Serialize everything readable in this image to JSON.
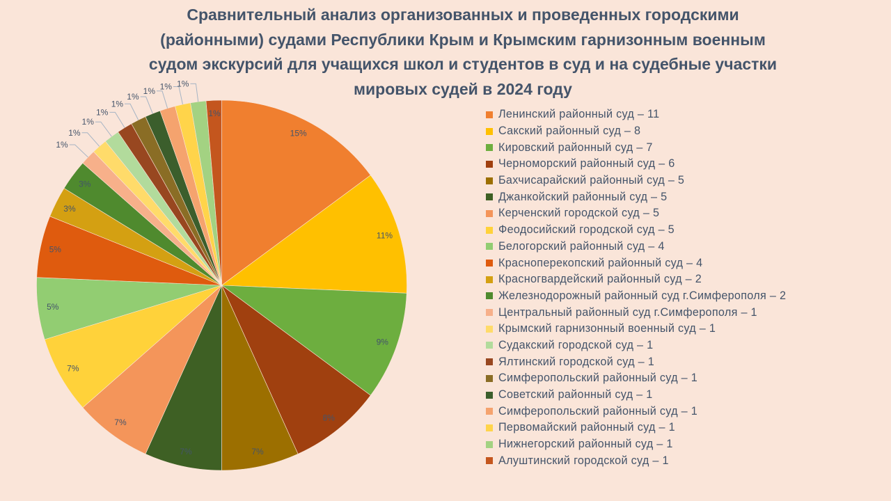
{
  "chart_data": {
    "type": "pie",
    "title": "Сравнительный анализ организованных и проведенных городскими (районными) судами Республики Крым и Крымским гарнизонным военным судом экскурсий для учащихся школ и студентов в суд и на судебные участки мировых судей в 2024 году",
    "title_lines": [
      "Сравнительный анализ организованных и проведенных городскими",
      "(районными) судами Республики Крым и Крымским гарнизонным военным",
      "судом экскурсий для учащихся школ и студентов в суд и на судебные участки",
      "мировых судей в 2024 году"
    ],
    "legend_position": "right",
    "slices": [
      {
        "label": "Ленинский районный суд – 11",
        "value": 11,
        "percent_label": "15%",
        "color": "#F07F2F"
      },
      {
        "label": "Сакский районный суд – 8",
        "value": 8,
        "percent_label": "11%",
        "color": "#FFC000"
      },
      {
        "label": "Кировский районный суд – 7",
        "value": 7,
        "percent_label": "9%",
        "color": "#6DAE3F"
      },
      {
        "label": "Черноморский районный суд – 6",
        "value": 6,
        "percent_label": "8%",
        "color": "#A0400F"
      },
      {
        "label": "Бахчисарайский районный суд – 5",
        "value": 5,
        "percent_label": "7%",
        "color": "#9C6F00"
      },
      {
        "label": "Джанкойский районный суд – 5",
        "value": 5,
        "percent_label": "7%",
        "color": "#3E6024"
      },
      {
        "label": "Керченский городской суд – 5",
        "value": 5,
        "percent_label": "7%",
        "color": "#F4955A"
      },
      {
        "label": "Феодосийский городской суд – 5",
        "value": 5,
        "percent_label": "7%",
        "color": "#FFD23A"
      },
      {
        "label": "Белогорский районный суд – 4",
        "value": 4,
        "percent_label": "5%",
        "color": "#92CD72"
      },
      {
        "label": "Красноперекопский районный суд – 4",
        "value": 4,
        "percent_label": "5%",
        "color": "#DF5B0E"
      },
      {
        "label": "Красногвардейский районный суд – 2",
        "value": 2,
        "percent_label": "3%",
        "color": "#D4A012"
      },
      {
        "label": "Железнодорожный районный суд г.Симферополя – 2",
        "value": 2,
        "percent_label": "3%",
        "color": "#4F8A2E"
      },
      {
        "label": "Центральный районный суд г.Симферополя – 1",
        "value": 1,
        "percent_label": "1%",
        "color": "#F7B08A"
      },
      {
        "label": "Крымский гарнизонный военный суд – 1",
        "value": 1,
        "percent_label": "1%",
        "color": "#FFDB6A"
      },
      {
        "label": "Судакский городской суд – 1",
        "value": 1,
        "percent_label": "1%",
        "color": "#B2DB9C"
      },
      {
        "label": "Ялтинский городской суд – 1",
        "value": 1,
        "percent_label": "1%",
        "color": "#984720"
      },
      {
        "label": "Симферопольский районный суд – 1",
        "value": 1,
        "percent_label": "1%",
        "color": "#8A6D25"
      },
      {
        "label": "Советский районный суд – 1",
        "value": 1,
        "percent_label": "1%",
        "color": "#3B5E2C"
      },
      {
        "label": "Симферопольский районный суд – 1",
        "value": 1,
        "percent_label": "1%",
        "color": "#F5A36E"
      },
      {
        "label": "Первомайский районный суд – 1",
        "value": 1,
        "percent_label": "1%",
        "color": "#FFD44A"
      },
      {
        "label": "Нижнегорский районный суд – 1",
        "value": 1,
        "percent_label": "1%",
        "color": "#A3D282"
      },
      {
        "label": "Алуштинский городской суд – 1",
        "value": 1,
        "percent_label": "1%",
        "color": "#C4561E"
      }
    ]
  }
}
